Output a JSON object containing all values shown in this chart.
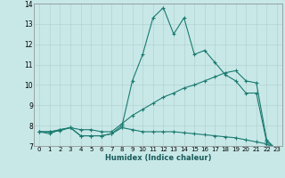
{
  "xlabel": "Humidex (Indice chaleur)",
  "xlim": [
    -0.5,
    23.5
  ],
  "ylim": [
    7,
    14
  ],
  "yticks": [
    7,
    8,
    9,
    10,
    11,
    12,
    13,
    14
  ],
  "xticks": [
    0,
    1,
    2,
    3,
    4,
    5,
    6,
    7,
    8,
    9,
    10,
    11,
    12,
    13,
    14,
    15,
    16,
    17,
    18,
    19,
    20,
    21,
    22,
    23
  ],
  "bg_color": "#c8e8e8",
  "line_color": "#1a7a6e",
  "grid_color": "#b0cccc",
  "line1": {
    "x": [
      0,
      1,
      2,
      3,
      4,
      5,
      6,
      7,
      8,
      9,
      10,
      11,
      12,
      13,
      14,
      15,
      16,
      17,
      18,
      19,
      20,
      21,
      22,
      23
    ],
    "y": [
      7.7,
      7.6,
      7.8,
      7.9,
      7.5,
      7.5,
      7.5,
      7.6,
      8.0,
      10.2,
      11.5,
      13.3,
      13.8,
      12.5,
      13.3,
      11.5,
      11.7,
      11.1,
      10.5,
      10.2,
      9.6,
      9.6,
      7.2,
      6.8
    ]
  },
  "line2": {
    "x": [
      0,
      1,
      2,
      3,
      4,
      5,
      6,
      7,
      8,
      9,
      10,
      11,
      12,
      13,
      14,
      15,
      16,
      17,
      18,
      19,
      20,
      21,
      22,
      23
    ],
    "y": [
      7.7,
      7.7,
      7.8,
      7.9,
      7.8,
      7.8,
      7.7,
      7.7,
      8.1,
      8.5,
      8.8,
      9.1,
      9.4,
      9.6,
      9.85,
      10.0,
      10.2,
      10.4,
      10.6,
      10.7,
      10.2,
      10.1,
      7.3,
      6.8
    ]
  },
  "line3": {
    "x": [
      0,
      1,
      2,
      3,
      4,
      5,
      6,
      7,
      8,
      9,
      10,
      11,
      12,
      13,
      14,
      15,
      16,
      17,
      18,
      19,
      20,
      21,
      22,
      23
    ],
    "y": [
      7.7,
      7.7,
      7.75,
      7.9,
      7.5,
      7.5,
      7.5,
      7.6,
      7.9,
      7.8,
      7.7,
      7.7,
      7.7,
      7.7,
      7.65,
      7.6,
      7.55,
      7.5,
      7.45,
      7.4,
      7.3,
      7.2,
      7.1,
      6.8
    ]
  }
}
